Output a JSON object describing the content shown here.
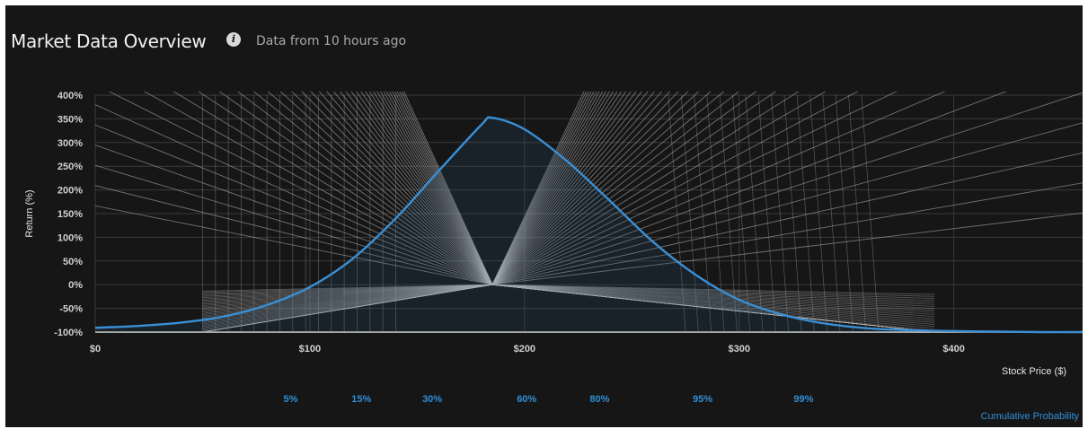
{
  "header": {
    "title": "Market Data Overview",
    "info_icon": "info-icon",
    "subtitle": "Data from 10 hours ago"
  },
  "colors": {
    "background": "#171616",
    "grid": "#3a3a3a",
    "payoff_lines": "#bdbdbd",
    "distribution": "#3a8fd4",
    "probability_labels": "#2f8fd6"
  },
  "chart_data": {
    "type": "line",
    "title": "Market Data Overview",
    "xlabel": "Stock Price ($)",
    "ylabel": "Return (%)",
    "x_ticks": [
      "$0",
      "$100",
      "$200",
      "$300",
      "$400"
    ],
    "y_ticks": [
      "400%",
      "350%",
      "300%",
      "250%",
      "200%",
      "150%",
      "100%",
      "50%",
      "0%",
      "-50%",
      "-100%"
    ],
    "xlim": [
      0,
      460
    ],
    "ylim": [
      -100,
      400
    ],
    "grid": true,
    "distribution_series": {
      "name": "",
      "x": [
        0,
        20,
        40,
        60,
        80,
        100,
        120,
        140,
        160,
        180,
        185,
        200,
        220,
        240,
        260,
        280,
        300,
        320,
        340,
        360,
        380,
        400,
        420,
        440,
        460
      ],
      "y": [
        -91,
        -87,
        -80,
        -67,
        -43,
        -5,
        55,
        140,
        240,
        338,
        352,
        328,
        260,
        176,
        90,
        20,
        -32,
        -63,
        -82,
        -92,
        -96,
        -98,
        -99,
        -100,
        -100
      ]
    },
    "payoff_strike": 185,
    "payoff_lines": {
      "description_count": 40
    },
    "cumulative_probability": {
      "title": "Cumulative Probability",
      "labels": [
        {
          "label": "5%",
          "price": 91
        },
        {
          "label": "15%",
          "price": 124
        },
        {
          "label": "30%",
          "price": 157
        },
        {
          "label": "60%",
          "price": 201
        },
        {
          "label": "80%",
          "price": 235
        },
        {
          "label": "95%",
          "price": 283
        },
        {
          "label": "99%",
          "price": 330
        }
      ]
    }
  }
}
